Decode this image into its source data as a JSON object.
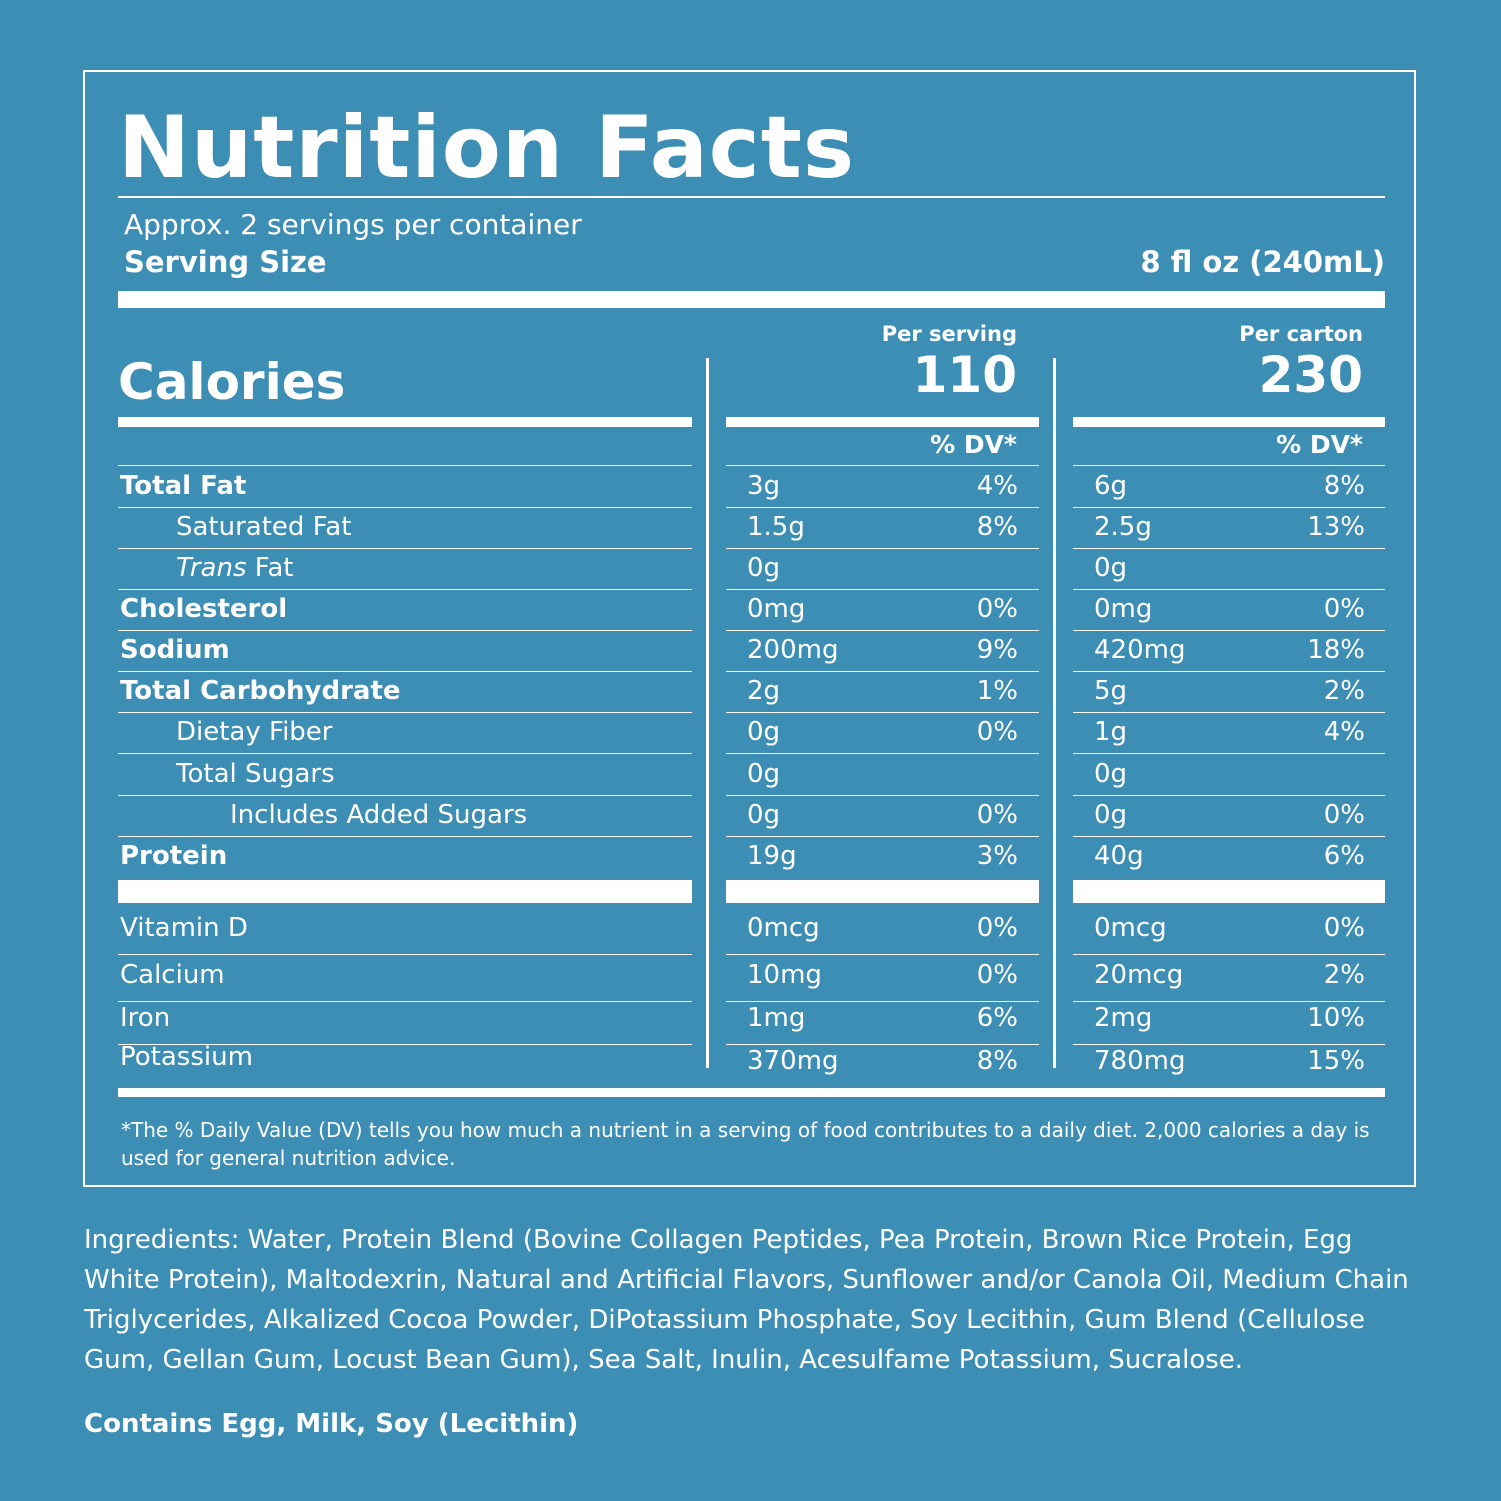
{
  "title": "Nutrition Facts",
  "servings_per_container": "Approx. 2 servings per container",
  "serving_size_label": "Serving Size",
  "serving_size_value": "8 fl oz (240mL)",
  "calories_label": "Calories",
  "per_serving_label": "Per serving",
  "per_carton_label": "Per carton",
  "calories_per_serving": "110",
  "calories_per_carton": "230",
  "dv_header": "% DV*",
  "nutrients": [
    {
      "label": "Total Fat",
      "serving_amount": "3g",
      "serving_dv": "4%",
      "carton_amount": "6g",
      "carton_dv": "8%"
    },
    {
      "label": "Saturated Fat",
      "serving_amount": "1.5g",
      "serving_dv": "8%",
      "carton_amount": "2.5g",
      "carton_dv": "13%"
    },
    {
      "label_italic": "Trans",
      "label": " Fat",
      "serving_amount": "0g",
      "serving_dv": "",
      "carton_amount": "0g",
      "carton_dv": ""
    },
    {
      "label": "Cholesterol",
      "serving_amount": "0mg",
      "serving_dv": "0%",
      "carton_amount": "0mg",
      "carton_dv": "0%"
    },
    {
      "label": "Sodium",
      "serving_amount": "200mg",
      "serving_dv": "9%",
      "carton_amount": "420mg",
      "carton_dv": "18%"
    },
    {
      "label": "Total Carbohydrate",
      "serving_amount": "2g",
      "serving_dv": "1%",
      "carton_amount": "5g",
      "carton_dv": "2%"
    },
    {
      "label": "Dietay Fiber",
      "serving_amount": "0g",
      "serving_dv": "0%",
      "carton_amount": "1g",
      "carton_dv": "4%"
    },
    {
      "label": "Total Sugars",
      "serving_amount": "0g",
      "serving_dv": "",
      "carton_amount": "0g",
      "carton_dv": ""
    },
    {
      "label": "Includes Added Sugars",
      "serving_amount": "0g",
      "serving_dv": "0%",
      "carton_amount": "0g",
      "carton_dv": "0%"
    },
    {
      "label": "Protein",
      "serving_amount": "19g",
      "serving_dv": "3%",
      "carton_amount": "40g",
      "carton_dv": "6%"
    }
  ],
  "vitamins": [
    {
      "label": "Vitamin D",
      "serving_amount": "0mcg",
      "serving_dv": "0%",
      "carton_amount": "0mcg",
      "carton_dv": "0%"
    },
    {
      "label": "Calcium",
      "serving_amount": "10mg",
      "serving_dv": "0%",
      "carton_amount": "20mcg",
      "carton_dv": "2%"
    },
    {
      "label": "Iron",
      "serving_amount": "1mg",
      "serving_dv": "6%",
      "carton_amount": "2mg",
      "carton_dv": "10%"
    },
    {
      "label": "Potassium",
      "serving_amount": "370mg",
      "serving_dv": "8%",
      "carton_amount": "780mg",
      "carton_dv": "15%"
    }
  ],
  "footnote": "*The % Daily Value (DV) tells you how much a nutrient in a serving of food contributes to a daily diet. 2,000 calories a day is used for general nutrition advice.",
  "ingredients": "Ingredients: Water, Protein Blend (Bovine Collagen Peptides, Pea Protein, Brown Rice Protein, Egg White Protein), Maltodexrin, Natural and Artificial Flavors, Sunflower and/or Canola Oil, Medium Chain Triglycerides, Alkalized Cocoa Powder, DiPotassium Phosphate, Soy Lecithin, Gum Blend (Cellulose Gum, Gellan Gum, Locust Bean Gum), Sea Salt, Inulin, Acesulfame Potassium, Sucralose.",
  "contains": "Contains Egg, Milk, Soy (Lecithin)",
  "colors": {
    "background": "#3d8eb4",
    "foreground": "#ffffff"
  }
}
